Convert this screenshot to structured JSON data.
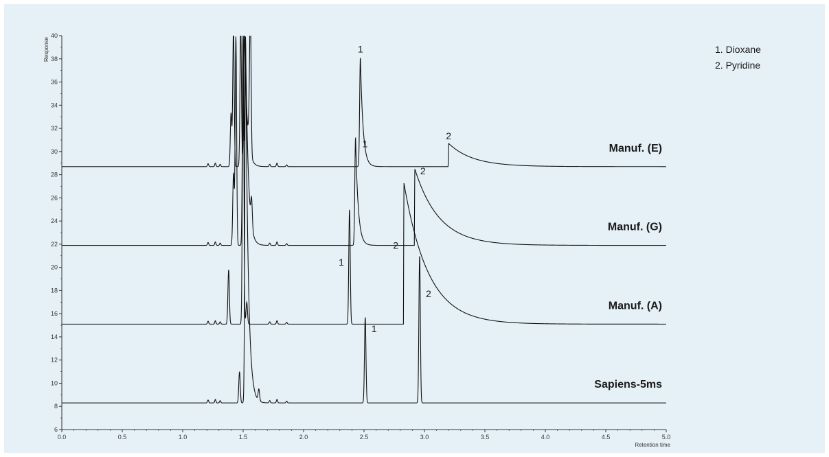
{
  "chart_data": {
    "type": "line",
    "title": "",
    "xlabel": "Retention time",
    "ylabel": "Response",
    "xlim": [
      0,
      5
    ],
    "ylim": [
      6,
      40
    ],
    "x_ticks": [
      "0.0",
      "0.5",
      "1.0",
      "1.5",
      "2.0",
      "2.5",
      "3.0",
      "3.5",
      "4.0",
      "4.5",
      "5.0"
    ],
    "y_ticks": [
      "6",
      "8",
      "10",
      "12",
      "14",
      "16",
      "18",
      "20",
      "22",
      "24",
      "26",
      "28",
      "30",
      "32",
      "34",
      "36",
      "38",
      "40"
    ],
    "grid": false,
    "legend": {
      "position": "top-right",
      "entries": [
        "1. Dioxane",
        "2. Pyridine"
      ]
    },
    "series": [
      {
        "name": "Manuf. (E)",
        "baseline": 28.7,
        "peaks": [
          {
            "x": 1.4,
            "height": 4.6,
            "shape": "narrow"
          },
          {
            "x": 1.42,
            "height": 12.0,
            "shape": "narrow"
          },
          {
            "x": 1.48,
            "height": 12.0,
            "shape": "narrow"
          },
          {
            "x": 1.51,
            "height": 12.0,
            "shape": "tail"
          },
          {
            "x": 1.55,
            "height": 2.0,
            "shape": "narrow"
          },
          {
            "x": 1.56,
            "height": 12.0,
            "shape": "narrow"
          },
          {
            "x": 2.47,
            "height": 9.5,
            "shape": "tail",
            "label": "1"
          },
          {
            "x": 3.2,
            "height": 2.0,
            "shape": "step-tail",
            "label": "2"
          }
        ]
      },
      {
        "name": "Manuf. (G)",
        "baseline": 21.9,
        "peaks": [
          {
            "x": 1.42,
            "height": 6.2,
            "shape": "narrow"
          },
          {
            "x": 1.44,
            "height": 18.0,
            "shape": "narrow"
          },
          {
            "x": 1.5,
            "height": 18.0,
            "shape": "narrow"
          },
          {
            "x": 1.52,
            "height": 18.0,
            "shape": "tail"
          },
          {
            "x": 1.57,
            "height": 2.3,
            "shape": "narrow"
          },
          {
            "x": 2.43,
            "height": 9.3,
            "shape": "tail",
            "label": "1"
          },
          {
            "x": 2.92,
            "height": 6.6,
            "shape": "step-tail",
            "label": "2"
          }
        ]
      },
      {
        "name": "Manuf. (A)",
        "baseline": 15.1,
        "peaks": [
          {
            "x": 1.38,
            "height": 4.7,
            "shape": "narrow"
          },
          {
            "x": 1.5,
            "height": 25.0,
            "shape": "narrow"
          },
          {
            "x": 1.53,
            "height": 1.9,
            "shape": "narrow"
          },
          {
            "x": 2.38,
            "height": 9.9,
            "shape": "narrow",
            "label": "1"
          },
          {
            "x": 2.83,
            "height": 12.2,
            "shape": "step-tail",
            "label": "2"
          }
        ]
      },
      {
        "name": "Sapiens-5ms",
        "baseline": 8.3,
        "peaks": [
          {
            "x": 1.47,
            "height": 2.7,
            "shape": "narrow"
          },
          {
            "x": 1.52,
            "height": 31.7,
            "shape": "tail"
          },
          {
            "x": 1.63,
            "height": 1.0,
            "shape": "narrow"
          },
          {
            "x": 2.51,
            "height": 7.4,
            "shape": "narrow",
            "label": "1"
          },
          {
            "x": 2.96,
            "height": 12.7,
            "shape": "narrow",
            "label": "2"
          }
        ]
      }
    ]
  }
}
